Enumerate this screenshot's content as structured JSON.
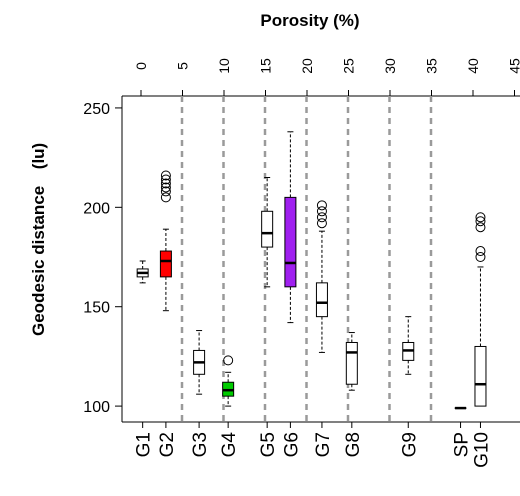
{
  "chart_data": {
    "type": "box",
    "top_axis": {
      "title": "Porosity (%)",
      "ticks": [
        0,
        5,
        10,
        15,
        20,
        25,
        30,
        35,
        40,
        45
      ],
      "tick_labels": [
        "0",
        "5",
        "10",
        "15",
        "20",
        "25",
        "30",
        "35",
        "40",
        "45"
      ]
    },
    "y_axis": {
      "title": "Geodesic distance",
      "unit": "(lu)",
      "ticks": [
        100,
        150,
        200,
        250
      ],
      "tick_labels": [
        "100",
        "150",
        "200",
        "250"
      ],
      "ylim": [
        92,
        256
      ]
    },
    "dashed_separators_at": [
      5,
      10,
      15,
      20,
      25,
      30,
      35
    ],
    "groups": [
      {
        "label": "G1",
        "porosity": 0.2,
        "color": "#ffffff",
        "whisker_low": 162,
        "q1": 165,
        "median": 167,
        "q3": 169,
        "whisker_high": 173,
        "outliers": []
      },
      {
        "label": "G2",
        "porosity": 3.0,
        "color": "#ff0000",
        "whisker_low": 148,
        "q1": 165,
        "median": 173,
        "q3": 178,
        "whisker_high": 189,
        "outliers": [
          205,
          208,
          210,
          212,
          214,
          216
        ]
      },
      {
        "label": "G3",
        "porosity": 7.0,
        "color": "#ffffff",
        "whisker_low": 106,
        "q1": 116,
        "median": 122,
        "q3": 128,
        "whisker_high": 138,
        "outliers": []
      },
      {
        "label": "G4",
        "porosity": 10.5,
        "color": "#00cc00",
        "whisker_low": 100,
        "q1": 105,
        "median": 108,
        "q3": 112,
        "whisker_high": 117,
        "outliers": [
          123
        ]
      },
      {
        "label": "G5",
        "porosity": 15.2,
        "color": "#ffffff",
        "whisker_low": 160,
        "q1": 180,
        "median": 187,
        "q3": 198,
        "whisker_high": 215,
        "outliers": []
      },
      {
        "label": "G6",
        "porosity": 18.0,
        "color": "#a020f0",
        "whisker_low": 142,
        "q1": 160,
        "median": 172,
        "q3": 205,
        "whisker_high": 238,
        "outliers": []
      },
      {
        "label": "G7",
        "porosity": 21.8,
        "color": "#ffffff",
        "whisker_low": 127,
        "q1": 145,
        "median": 152,
        "q3": 162,
        "whisker_high": 188,
        "outliers": [
          192,
          195,
          198,
          201
        ]
      },
      {
        "label": "G8",
        "porosity": 25.4,
        "color": "#ffffff",
        "whisker_low": 108,
        "q1": 111,
        "median": 127,
        "q3": 132,
        "whisker_high": 137,
        "outliers": []
      },
      {
        "label": "G9",
        "porosity": 32.2,
        "color": "#ffffff",
        "whisker_low": 116,
        "q1": 123,
        "median": 128,
        "q3": 132,
        "whisker_high": 145,
        "outliers": []
      },
      {
        "label": "SP",
        "porosity": 38.5,
        "color": "#ffffff",
        "whisker_low": 99,
        "q1": 99,
        "median": 99,
        "q3": 99,
        "whisker_high": 99,
        "outliers": []
      },
      {
        "label": "G10",
        "porosity": 40.9,
        "color": "#ffffff",
        "whisker_low": 100,
        "q1": 100,
        "median": 111,
        "q3": 130,
        "whisker_high": 170,
        "outliers": [
          175,
          178,
          190,
          193,
          195
        ]
      }
    ]
  }
}
